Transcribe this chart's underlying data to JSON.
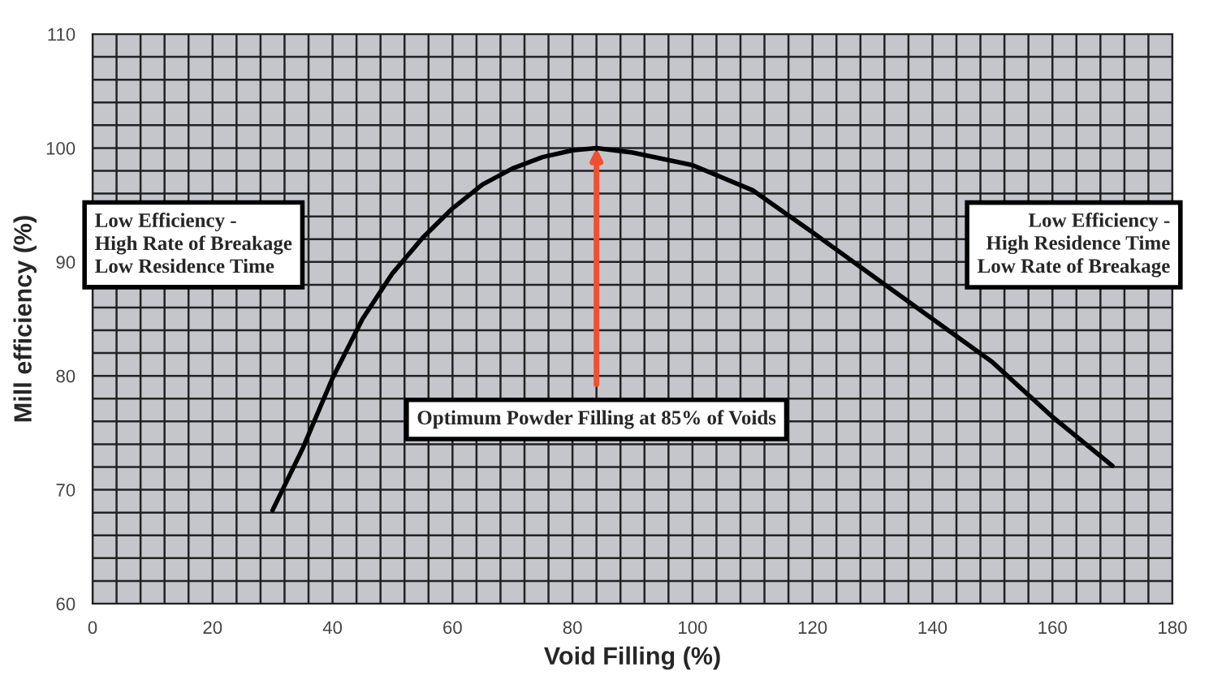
{
  "chart_data": {
    "type": "line",
    "xlabel": "Void Filling (%)",
    "ylabel": "Mill efficiency (%)",
    "x": [
      30,
      35,
      40,
      45,
      50,
      55,
      60,
      65,
      70,
      75,
      80,
      84,
      90,
      100,
      110,
      120,
      130,
      140,
      150,
      160,
      170
    ],
    "series": [
      {
        "color": "#000000",
        "values": [
          68.2,
          73.6,
          79.8,
          85,
          89,
          92.1,
          94.7,
          96.8,
          98.2,
          99.2,
          99.8,
          100,
          99.6,
          98.5,
          96.3,
          92.6,
          88.8,
          85,
          81.2,
          76.4,
          72.1
        ]
      }
    ],
    "xlim": [
      0,
      180
    ],
    "xticks": [
      0,
      20,
      40,
      60,
      80,
      100,
      120,
      140,
      160,
      180
    ],
    "ylim": [
      60,
      110
    ],
    "yticks": [
      60,
      70,
      80,
      90,
      100,
      110
    ],
    "grid": true,
    "marker": "none",
    "line_style": "solid",
    "annotations": [
      {
        "text": "Optimum Powder Filling at 85% of Voids",
        "x": 84,
        "y": 100
      },
      "Low Efficiency -\nHigh Rate of Breakage\nLow Residence Time",
      "Low Efficiency -\nHigh Residence Time\nLow Rate of Breakage"
    ]
  }
}
